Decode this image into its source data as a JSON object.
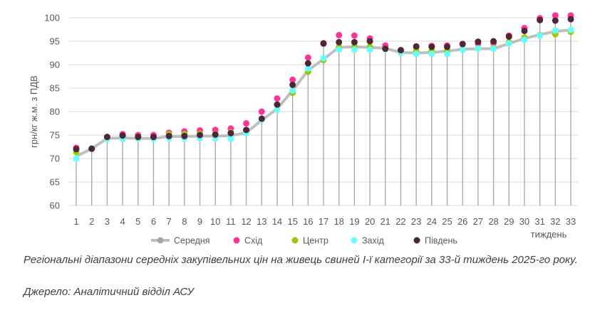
{
  "chart_data": {
    "type": "line",
    "ylabel": "грн/кг ж.м. з ПДВ",
    "xlabel": "тиждень",
    "ylim": [
      60,
      100
    ],
    "yticks": [
      60,
      65,
      70,
      75,
      80,
      85,
      90,
      95,
      100
    ],
    "grid": true,
    "legend_position": "bottom",
    "x": [
      1,
      2,
      3,
      4,
      5,
      6,
      7,
      8,
      9,
      10,
      11,
      12,
      13,
      14,
      15,
      16,
      17,
      18,
      19,
      20,
      21,
      22,
      23,
      24,
      25,
      26,
      27,
      28,
      29,
      30,
      31,
      32,
      33
    ],
    "series": [
      {
        "name": "Середня",
        "style": "line",
        "color": "#bfbfbf",
        "values": [
          70.5,
          72.1,
          74.3,
          74.4,
          74.3,
          74.3,
          74.7,
          74.7,
          74.8,
          74.8,
          74.9,
          75.5,
          78.2,
          80.6,
          84.5,
          88.8,
          91.2,
          93.7,
          93.8,
          93.7,
          93.5,
          92.6,
          92.5,
          92.6,
          92.9,
          93.3,
          93.4,
          93.4,
          94.5,
          95.6,
          96.4,
          97.1,
          97.4
        ]
      },
      {
        "name": "Схід",
        "style": "marker",
        "color": "#ff3399",
        "values": [
          72.3,
          72.1,
          74.6,
          75.2,
          75.0,
          75.0,
          75.5,
          75.8,
          76.0,
          76.1,
          76.4,
          77.5,
          80.0,
          82.8,
          86.8,
          91.5,
          94.6,
          96.3,
          96.2,
          95.6,
          94.1,
          93.0,
          93.8,
          94.0,
          94.1,
          94.4,
          94.5,
          94.6,
          96.2,
          97.8,
          99.9,
          100.5,
          100.5
        ]
      },
      {
        "name": "Центр",
        "style": "marker",
        "color": "#99cc00",
        "values": [
          71.4,
          72.1,
          74.6,
          74.7,
          74.5,
          74.5,
          75.2,
          75.2,
          75.3,
          75.2,
          75.6,
          75.8,
          78.2,
          80.4,
          84.0,
          88.5,
          91.0,
          93.8,
          93.9,
          93.8,
          93.4,
          92.8,
          93.0,
          92.9,
          92.9,
          93.3,
          93.5,
          93.6,
          94.8,
          95.8,
          96.3,
          96.5,
          97.0
        ]
      },
      {
        "name": "Захід",
        "style": "marker",
        "color": "#66ffff",
        "values": [
          70.0,
          72.1,
          74.2,
          74.2,
          74.2,
          74.2,
          74.3,
          74.3,
          74.3,
          74.3,
          74.2,
          75.4,
          78.2,
          80.4,
          84.5,
          89.2,
          91.4,
          93.2,
          93.2,
          93.2,
          93.3,
          92.5,
          92.3,
          92.3,
          92.3,
          93.2,
          93.4,
          93.4,
          94.5,
          95.3,
          96.2,
          97.3,
          97.4
        ]
      },
      {
        "name": "Південь",
        "style": "marker",
        "color": "#4d2638",
        "values": [
          72.0,
          72.1,
          74.6,
          74.9,
          74.6,
          74.6,
          74.8,
          74.8,
          75.0,
          75.1,
          75.4,
          76.1,
          78.5,
          81.5,
          85.7,
          90.3,
          94.5,
          94.8,
          94.8,
          95.0,
          93.4,
          93.1,
          93.9,
          93.8,
          93.8,
          94.4,
          94.9,
          95.0,
          96.0,
          97.2,
          99.5,
          99.4,
          99.7
        ]
      }
    ]
  },
  "caption": {
    "line1": "Регіональні діапазони середніх закупівельних цін на живець свиней І-ї категорії за 33-й тиждень 2025-го року.",
    "source": "Джерело: Аналітичний відділ АСУ"
  }
}
